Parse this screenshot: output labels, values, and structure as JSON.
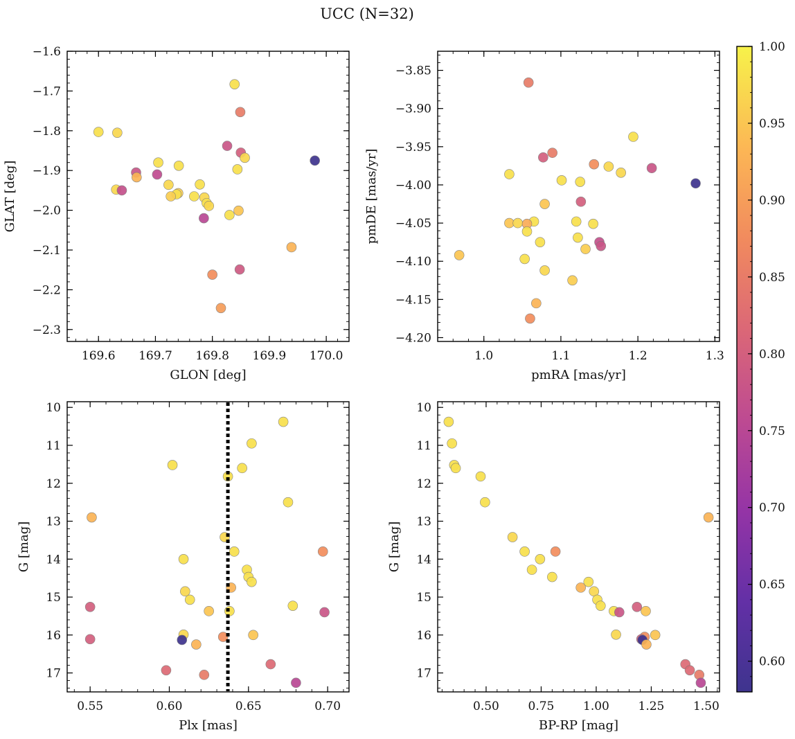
{
  "figure": {
    "title": "UCC (N=32)"
  },
  "colorbar": {
    "min": 0.58,
    "max": 1.0,
    "colormap": "plasma",
    "ticks": [
      0.6,
      0.65,
      0.7,
      0.75,
      0.8,
      0.85,
      0.9,
      0.95,
      1.0
    ],
    "tick_labels": [
      "0.60",
      "0.65",
      "0.70",
      "0.75",
      "0.80",
      "0.85",
      "0.90",
      "0.95",
      "1.00"
    ]
  },
  "chart_data": [
    {
      "type": "scatter",
      "id": "glon-glat",
      "xlabel": "GLON [deg]",
      "ylabel": "GLAT [deg]",
      "xlim": [
        169.545,
        170.04
      ],
      "ylim": [
        -2.33,
        -1.6
      ],
      "y_inverted": false,
      "xticks": [
        169.6,
        169.7,
        169.8,
        169.9,
        170.0
      ],
      "xtick_labels": [
        "169.6",
        "169.7",
        "169.8",
        "169.9",
        "170.0"
      ],
      "xminor_step": 0.02,
      "yticks": [
        -2.3,
        -2.2,
        -2.1,
        -2.0,
        -1.9,
        -1.8,
        -1.7,
        -1.6
      ],
      "ytick_labels": [
        "−2.3",
        "−2.2",
        "−2.1",
        "−2.0",
        "−1.9",
        "−1.8",
        "−1.7",
        "−1.6"
      ],
      "yminor_step": 0.02,
      "points": [
        {
          "x": 169.839,
          "y": -1.683,
          "c": 0.98
        },
        {
          "x": 169.849,
          "y": -1.753,
          "c": 0.85
        },
        {
          "x": 169.6,
          "y": -1.803,
          "c": 0.98
        },
        {
          "x": 169.633,
          "y": -1.805,
          "c": 0.97
        },
        {
          "x": 169.826,
          "y": -1.838,
          "c": 0.78
        },
        {
          "x": 169.85,
          "y": -1.855,
          "c": 0.8
        },
        {
          "x": 169.857,
          "y": -1.868,
          "c": 0.97
        },
        {
          "x": 169.98,
          "y": -1.875,
          "c": 0.58
        },
        {
          "x": 169.705,
          "y": -1.88,
          "c": 0.98
        },
        {
          "x": 169.741,
          "y": -1.888,
          "c": 0.98
        },
        {
          "x": 169.844,
          "y": -1.897,
          "c": 0.98
        },
        {
          "x": 169.666,
          "y": -1.905,
          "c": 0.78
        },
        {
          "x": 169.703,
          "y": -1.91,
          "c": 0.76
        },
        {
          "x": 169.667,
          "y": -1.917,
          "c": 0.93
        },
        {
          "x": 169.723,
          "y": -1.936,
          "c": 0.97
        },
        {
          "x": 169.778,
          "y": -1.935,
          "c": 0.98
        },
        {
          "x": 169.631,
          "y": -1.948,
          "c": 0.97
        },
        {
          "x": 169.641,
          "y": -1.95,
          "c": 0.77
        },
        {
          "x": 169.74,
          "y": -1.957,
          "c": 0.96
        },
        {
          "x": 169.737,
          "y": -1.96,
          "c": 0.98
        },
        {
          "x": 169.727,
          "y": -1.965,
          "c": 0.96
        },
        {
          "x": 169.768,
          "y": -1.965,
          "c": 0.98
        },
        {
          "x": 169.786,
          "y": -1.968,
          "c": 0.97
        },
        {
          "x": 169.79,
          "y": -1.982,
          "c": 0.98
        },
        {
          "x": 169.794,
          "y": -1.989,
          "c": 0.97
        },
        {
          "x": 169.846,
          "y": -2.001,
          "c": 0.95
        },
        {
          "x": 169.83,
          "y": -2.012,
          "c": 0.98
        },
        {
          "x": 169.785,
          "y": -2.02,
          "c": 0.75
        },
        {
          "x": 169.939,
          "y": -2.093,
          "c": 0.93
        },
        {
          "x": 169.848,
          "y": -2.149,
          "c": 0.79
        },
        {
          "x": 169.8,
          "y": -2.162,
          "c": 0.88
        },
        {
          "x": 169.815,
          "y": -2.246,
          "c": 0.9
        }
      ]
    },
    {
      "type": "scatter",
      "id": "pmra-pmde",
      "xlabel": "pmRA [mas/yr]",
      "ylabel": "pmDE [mas/yr]",
      "xlim": [
        0.94,
        1.306
      ],
      "ylim": [
        -4.205,
        -3.825
      ],
      "y_inverted": false,
      "xticks": [
        1.0,
        1.1,
        1.2,
        1.3
      ],
      "xtick_labels": [
        "1.0",
        "1.1",
        "1.2",
        "1.3"
      ],
      "xminor_step": 0.02,
      "yticks": [
        -4.2,
        -4.15,
        -4.1,
        -4.05,
        -4.0,
        -3.95,
        -3.9,
        -3.85
      ],
      "ytick_labels": [
        "−4.20",
        "−4.15",
        "−4.10",
        "−4.05",
        "−4.00",
        "−3.95",
        "−3.90",
        "−3.85"
      ],
      "yminor_step": 0.01,
      "points": [
        {
          "x": 1.058,
          "y": -3.866,
          "c": 0.85
        },
        {
          "x": 1.194,
          "y": -3.937,
          "c": 0.98
        },
        {
          "x": 1.089,
          "y": -3.958,
          "c": 0.85
        },
        {
          "x": 1.077,
          "y": -3.964,
          "c": 0.8
        },
        {
          "x": 1.143,
          "y": -3.973,
          "c": 0.88
        },
        {
          "x": 1.162,
          "y": -3.976,
          "c": 0.97
        },
        {
          "x": 1.218,
          "y": -3.978,
          "c": 0.78
        },
        {
          "x": 1.178,
          "y": -3.984,
          "c": 0.97
        },
        {
          "x": 1.033,
          "y": -3.986,
          "c": 0.98
        },
        {
          "x": 1.101,
          "y": -3.994,
          "c": 0.98
        },
        {
          "x": 1.125,
          "y": -3.996,
          "c": 0.98
        },
        {
          "x": 1.275,
          "y": -3.998,
          "c": 0.58
        },
        {
          "x": 1.126,
          "y": -4.022,
          "c": 0.8
        },
        {
          "x": 1.079,
          "y": -4.025,
          "c": 0.95
        },
        {
          "x": 1.12,
          "y": -4.048,
          "c": 0.98
        },
        {
          "x": 1.065,
          "y": -4.048,
          "c": 0.98
        },
        {
          "x": 1.033,
          "y": -4.05,
          "c": 0.95
        },
        {
          "x": 1.044,
          "y": -4.05,
          "c": 0.97
        },
        {
          "x": 1.056,
          "y": -4.051,
          "c": 0.92
        },
        {
          "x": 1.142,
          "y": -4.051,
          "c": 0.98
        },
        {
          "x": 1.056,
          "y": -4.061,
          "c": 0.98
        },
        {
          "x": 1.122,
          "y": -4.069,
          "c": 0.98
        },
        {
          "x": 1.073,
          "y": -4.075,
          "c": 0.98
        },
        {
          "x": 1.15,
          "y": -4.075,
          "c": 0.77
        },
        {
          "x": 1.152,
          "y": -4.08,
          "c": 0.78
        },
        {
          "x": 1.132,
          "y": -4.084,
          "c": 0.96
        },
        {
          "x": 0.968,
          "y": -4.092,
          "c": 0.95
        },
        {
          "x": 1.053,
          "y": -4.097,
          "c": 0.98
        },
        {
          "x": 1.079,
          "y": -4.112,
          "c": 0.97
        },
        {
          "x": 1.115,
          "y": -4.125,
          "c": 0.96
        },
        {
          "x": 1.068,
          "y": -4.155,
          "c": 0.93
        },
        {
          "x": 1.06,
          "y": -4.175,
          "c": 0.88
        }
      ]
    },
    {
      "type": "scatter",
      "id": "plx-g",
      "xlabel": "Plx [mas]",
      "ylabel": "G [mag]",
      "xlim": [
        0.5355,
        0.7135
      ],
      "ylim": [
        9.85,
        17.5
      ],
      "y_inverted": true,
      "xticks": [
        0.55,
        0.6,
        0.65,
        0.7
      ],
      "xtick_labels": [
        "0.55",
        "0.60",
        "0.65",
        "0.70"
      ],
      "xminor_step": 0.01,
      "yticks": [
        10,
        11,
        12,
        13,
        14,
        15,
        16,
        17
      ],
      "ytick_labels": [
        "10",
        "11",
        "12",
        "13",
        "14",
        "15",
        "16",
        "17"
      ],
      "yminor_step": 0.2,
      "vline": {
        "x": 0.637,
        "style": "dotted"
      },
      "points": [
        {
          "x": 0.672,
          "y": 10.38,
          "c": 0.98
        },
        {
          "x": 0.652,
          "y": 10.95,
          "c": 0.98
        },
        {
          "x": 0.602,
          "y": 11.52,
          "c": 0.98
        },
        {
          "x": 0.646,
          "y": 11.6,
          "c": 0.98
        },
        {
          "x": 0.637,
          "y": 11.82,
          "c": 0.98
        },
        {
          "x": 0.675,
          "y": 12.5,
          "c": 0.98
        },
        {
          "x": 0.551,
          "y": 12.9,
          "c": 0.93
        },
        {
          "x": 0.635,
          "y": 13.42,
          "c": 0.97
        },
        {
          "x": 0.697,
          "y": 13.8,
          "c": 0.88
        },
        {
          "x": 0.641,
          "y": 13.8,
          "c": 0.98
        },
        {
          "x": 0.609,
          "y": 14.0,
          "c": 0.98
        },
        {
          "x": 0.649,
          "y": 14.28,
          "c": 0.98
        },
        {
          "x": 0.65,
          "y": 14.47,
          "c": 0.98
        },
        {
          "x": 0.652,
          "y": 14.6,
          "c": 0.98
        },
        {
          "x": 0.639,
          "y": 14.75,
          "c": 0.93
        },
        {
          "x": 0.61,
          "y": 14.85,
          "c": 0.97
        },
        {
          "x": 0.613,
          "y": 15.07,
          "c": 0.98
        },
        {
          "x": 0.678,
          "y": 15.23,
          "c": 0.98
        },
        {
          "x": 0.55,
          "y": 15.26,
          "c": 0.8
        },
        {
          "x": 0.625,
          "y": 15.37,
          "c": 0.95
        },
        {
          "x": 0.638,
          "y": 15.37,
          "c": 0.98
        },
        {
          "x": 0.698,
          "y": 15.4,
          "c": 0.78
        },
        {
          "x": 0.609,
          "y": 15.99,
          "c": 0.97
        },
        {
          "x": 0.653,
          "y": 16.0,
          "c": 0.95
        },
        {
          "x": 0.634,
          "y": 16.05,
          "c": 0.88
        },
        {
          "x": 0.55,
          "y": 16.11,
          "c": 0.8
        },
        {
          "x": 0.608,
          "y": 16.13,
          "c": 0.58
        },
        {
          "x": 0.617,
          "y": 16.25,
          "c": 0.93
        },
        {
          "x": 0.664,
          "y": 16.77,
          "c": 0.82
        },
        {
          "x": 0.598,
          "y": 16.93,
          "c": 0.82
        },
        {
          "x": 0.622,
          "y": 17.05,
          "c": 0.85
        },
        {
          "x": 0.68,
          "y": 17.26,
          "c": 0.75
        }
      ]
    },
    {
      "type": "scatter",
      "id": "bprp-g",
      "xlabel": "BP-RP [mag]",
      "ylabel": "G [mag]",
      "xlim": [
        0.28,
        1.56
      ],
      "ylim": [
        9.85,
        17.5
      ],
      "y_inverted": true,
      "xticks": [
        0.5,
        0.75,
        1.0,
        1.25,
        1.5
      ],
      "xtick_labels": [
        "0.50",
        "0.75",
        "1.00",
        "1.25",
        "1.50"
      ],
      "xminor_step": 0.05,
      "yticks": [
        10,
        11,
        12,
        13,
        14,
        15,
        16,
        17
      ],
      "ytick_labels": [
        "10",
        "11",
        "12",
        "13",
        "14",
        "15",
        "16",
        "17"
      ],
      "yminor_step": 0.2,
      "points": [
        {
          "x": 0.33,
          "y": 10.38,
          "c": 0.98
        },
        {
          "x": 0.345,
          "y": 10.95,
          "c": 0.98
        },
        {
          "x": 0.355,
          "y": 11.52,
          "c": 0.98
        },
        {
          "x": 0.362,
          "y": 11.6,
          "c": 0.98
        },
        {
          "x": 0.475,
          "y": 11.82,
          "c": 0.98
        },
        {
          "x": 0.495,
          "y": 12.5,
          "c": 0.98
        },
        {
          "x": 1.51,
          "y": 12.9,
          "c": 0.93
        },
        {
          "x": 0.62,
          "y": 13.42,
          "c": 0.97
        },
        {
          "x": 0.675,
          "y": 13.8,
          "c": 0.98
        },
        {
          "x": 0.815,
          "y": 13.8,
          "c": 0.88
        },
        {
          "x": 0.745,
          "y": 14.0,
          "c": 0.98
        },
        {
          "x": 0.708,
          "y": 14.28,
          "c": 0.98
        },
        {
          "x": 0.8,
          "y": 14.47,
          "c": 0.98
        },
        {
          "x": 0.965,
          "y": 14.6,
          "c": 0.98
        },
        {
          "x": 0.93,
          "y": 14.75,
          "c": 0.93
        },
        {
          "x": 0.99,
          "y": 14.85,
          "c": 0.97
        },
        {
          "x": 1.005,
          "y": 15.07,
          "c": 0.98
        },
        {
          "x": 1.02,
          "y": 15.23,
          "c": 0.98
        },
        {
          "x": 1.185,
          "y": 15.26,
          "c": 0.8
        },
        {
          "x": 1.08,
          "y": 15.37,
          "c": 0.98
        },
        {
          "x": 1.225,
          "y": 15.37,
          "c": 0.95
        },
        {
          "x": 1.105,
          "y": 15.4,
          "c": 0.78
        },
        {
          "x": 1.09,
          "y": 15.99,
          "c": 0.97
        },
        {
          "x": 1.268,
          "y": 16.0,
          "c": 0.95
        },
        {
          "x": 1.22,
          "y": 16.05,
          "c": 0.88
        },
        {
          "x": 1.205,
          "y": 16.11,
          "c": 0.8
        },
        {
          "x": 1.21,
          "y": 16.13,
          "c": 0.58
        },
        {
          "x": 1.228,
          "y": 16.25,
          "c": 0.93
        },
        {
          "x": 1.405,
          "y": 16.77,
          "c": 0.82
        },
        {
          "x": 1.425,
          "y": 16.93,
          "c": 0.82
        },
        {
          "x": 1.468,
          "y": 17.05,
          "c": 0.85
        },
        {
          "x": 1.475,
          "y": 17.26,
          "c": 0.75
        }
      ]
    }
  ]
}
